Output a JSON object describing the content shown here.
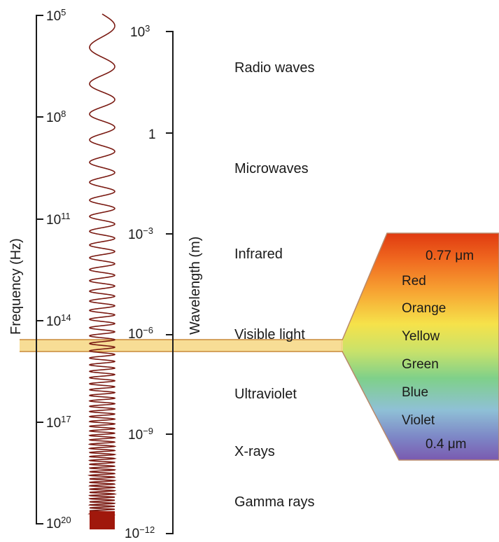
{
  "frequency_axis": {
    "title": "Frequency (Hz)",
    "ticks": [
      {
        "base": "10",
        "exp": "5"
      },
      {
        "base": "10",
        "exp": "8"
      },
      {
        "base": "10",
        "exp": "11"
      },
      {
        "base": "10",
        "exp": "14"
      },
      {
        "base": "10",
        "exp": "17"
      },
      {
        "base": "10",
        "exp": "20"
      }
    ]
  },
  "wavelength_axis": {
    "title": "Wavelength (m)",
    "ticks": [
      {
        "base": "10",
        "exp": "3"
      },
      {
        "base": "1",
        "exp": ""
      },
      {
        "base": "10",
        "exp": "−3"
      },
      {
        "base": "10",
        "exp": "−6"
      },
      {
        "base": "10",
        "exp": "−9"
      },
      {
        "base": "10",
        "exp": "−12"
      }
    ]
  },
  "regions": [
    "Radio waves",
    "Microwaves",
    "Infrared",
    "Visible light",
    "Ultraviolet",
    "X-rays",
    "Gamma rays"
  ],
  "spectrum": {
    "top_label": "0.77 μm",
    "bottom_label": "0.4 μm",
    "colors": [
      "Red",
      "Orange",
      "Yellow",
      "Green",
      "Blue",
      "Violet"
    ]
  },
  "palette": {
    "wave": "#7a1a12",
    "band": "#f6d98a",
    "band_edge": "#c98a3a",
    "axis": "#1a1a1a"
  }
}
